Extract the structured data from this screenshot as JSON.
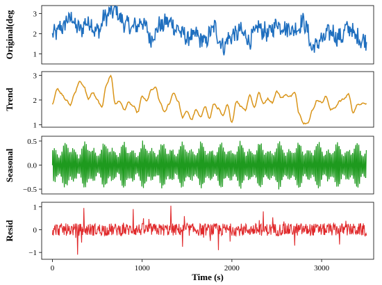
{
  "chart_data": [
    {
      "type": "line",
      "ylabel": "Original(deg",
      "ylim": [
        0.5,
        3.4
      ],
      "yticks": [
        1,
        2,
        3
      ],
      "ytick_labels": [
        "1",
        "2",
        "3"
      ],
      "xlim": [
        -120,
        3580
      ],
      "color": "#1f6fbf",
      "series": [
        {
          "x": [
            0,
            100,
            200,
            300,
            400,
            500,
            600,
            700,
            800,
            900,
            1000,
            1100,
            1200,
            1300,
            1400,
            1500,
            1600,
            1700,
            1800,
            1900,
            2000,
            2100,
            2200,
            2300,
            2400,
            2500,
            2600,
            2700,
            2800,
            2900,
            3000,
            3100,
            3200,
            3300,
            3400,
            3500
          ],
          "values": [
            1.9,
            2.3,
            2.8,
            2.2,
            2.6,
            2.1,
            2.9,
            3.2,
            2.5,
            2.3,
            2.6,
            1.8,
            2.4,
            2.6,
            2.2,
            1.8,
            1.9,
            1.6,
            2.3,
            1.4,
            1.9,
            2.1,
            1.7,
            2.3,
            2.0,
            2.5,
            2.3,
            2.2,
            2.6,
            1.3,
            1.7,
            2.1,
            1.8,
            2.3,
            1.8,
            1.6
          ]
        }
      ]
    },
    {
      "type": "line",
      "ylabel": "Trend",
      "ylim": [
        0.9,
        3.15
      ],
      "yticks": [
        1,
        2,
        3
      ],
      "ytick_labels": [
        "1",
        "2",
        "3"
      ],
      "xlim": [
        -120,
        3580
      ],
      "color": "#d99418",
      "series": [
        {
          "x": [
            0,
            50,
            100,
            150,
            200,
            250,
            300,
            350,
            400,
            450,
            500,
            550,
            600,
            650,
            700,
            750,
            800,
            850,
            900,
            950,
            1000,
            1050,
            1100,
            1150,
            1200,
            1250,
            1300,
            1350,
            1400,
            1450,
            1500,
            1550,
            1600,
            1650,
            1700,
            1750,
            1800,
            1850,
            1900,
            1950,
            2000,
            2050,
            2100,
            2150,
            2200,
            2250,
            2300,
            2350,
            2400,
            2450,
            2500,
            2550,
            2600,
            2650,
            2700,
            2750,
            2800,
            2850,
            2900,
            2950,
            3000,
            3050,
            3100,
            3150,
            3200,
            3250,
            3300,
            3350,
            3400,
            3450,
            3500
          ],
          "values": [
            1.85,
            2.45,
            2.25,
            2.0,
            1.8,
            2.3,
            2.75,
            2.55,
            2.05,
            2.3,
            2.0,
            1.7,
            2.6,
            3.0,
            1.85,
            1.95,
            1.6,
            1.9,
            1.75,
            1.5,
            2.15,
            1.95,
            2.4,
            2.5,
            1.9,
            1.5,
            1.85,
            2.3,
            1.95,
            1.3,
            1.55,
            1.2,
            1.6,
            1.3,
            1.75,
            1.25,
            1.85,
            1.65,
            1.35,
            1.8,
            1.1,
            1.95,
            1.75,
            1.6,
            2.2,
            1.7,
            2.3,
            1.85,
            2.05,
            1.9,
            2.35,
            2.1,
            2.2,
            2.15,
            2.3,
            1.45,
            1.05,
            1.1,
            1.6,
            2.0,
            1.9,
            2.15,
            1.6,
            1.7,
            1.95,
            2.05,
            2.25,
            1.5,
            1.8,
            1.85,
            1.85
          ]
        }
      ]
    },
    {
      "type": "line",
      "ylabel": "Seasonal",
      "ylim": [
        -0.6,
        0.6
      ],
      "yticks": [
        -0.5,
        0.0,
        0.5
      ],
      "ytick_labels": [
        "−0.5",
        "0.0",
        "0.5"
      ],
      "xlim": [
        -120,
        3580
      ],
      "color": "#1e9a1e",
      "oscillation": {
        "x_start": 0,
        "x_end": 3500,
        "amplitude_min": 0.15,
        "amplitude_max": 0.5
      }
    },
    {
      "type": "line",
      "ylabel": "Resid",
      "ylim": [
        -1.3,
        1.2
      ],
      "yticks": [
        -1,
        0,
        1
      ],
      "ytick_labels": [
        "−1",
        "0",
        "1"
      ],
      "xlim": [
        -120,
        3580
      ],
      "xticks": [
        0,
        1000,
        2000,
        3000
      ],
      "xtick_labels": [
        "0",
        "1000",
        "2000",
        "3000"
      ],
      "xlabel": "Time (s)",
      "color": "#e0282a",
      "spikes": [
        {
          "x": 280,
          "value": -1.1
        },
        {
          "x": 350,
          "value": 0.95
        },
        {
          "x": 900,
          "value": 0.9
        },
        {
          "x": 1320,
          "value": 1.05
        },
        {
          "x": 1450,
          "value": -0.75
        },
        {
          "x": 1850,
          "value": -0.9
        },
        {
          "x": 2350,
          "value": 0.8
        },
        {
          "x": 2700,
          "value": -0.7
        },
        {
          "x": 3200,
          "value": -0.65
        }
      ]
    }
  ]
}
